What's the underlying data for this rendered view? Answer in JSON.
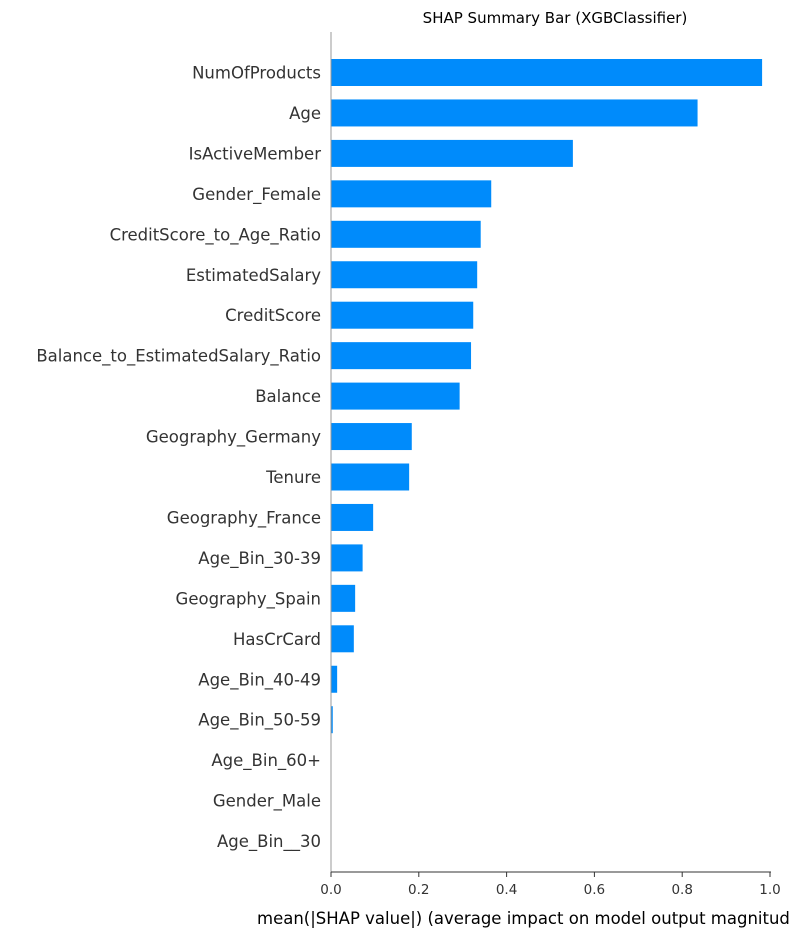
{
  "chart_data": {
    "type": "bar",
    "orientation": "horizontal",
    "title": "SHAP Summary Bar (XGBClassifier)",
    "xlabel": "mean(|SHAP value|) (average impact on model output magnitude)",
    "ylabel": "",
    "xlim": [
      0,
      1.0
    ],
    "xticks": [
      0.0,
      0.2,
      0.4,
      0.6,
      0.8,
      1.0
    ],
    "xtick_labels": [
      "0.0",
      "0.2",
      "0.4",
      "0.6",
      "0.8",
      "1.0"
    ],
    "grid": false,
    "legend": "none",
    "bar_color": "#008bfb",
    "categories": [
      "NumOfProducts",
      "Age",
      "IsActiveMember",
      "Gender_Female",
      "CreditScore_to_Age_Ratio",
      "EstimatedSalary",
      "CreditScore",
      "Balance_to_EstimatedSalary_Ratio",
      "Balance",
      "Geography_Germany",
      "Tenure",
      "Geography_France",
      "Age_Bin_30-39",
      "Geography_Spain",
      "HasCrCard",
      "Age_Bin_40-49",
      "Age_Bin_50-59",
      "Age_Bin_60+",
      "Gender_Male",
      "Age_Bin__30"
    ],
    "values": [
      0.982,
      0.835,
      0.551,
      0.365,
      0.341,
      0.333,
      0.324,
      0.319,
      0.293,
      0.184,
      0.178,
      0.096,
      0.072,
      0.055,
      0.052,
      0.014,
      0.004,
      0.0,
      0.0,
      0.0
    ]
  }
}
